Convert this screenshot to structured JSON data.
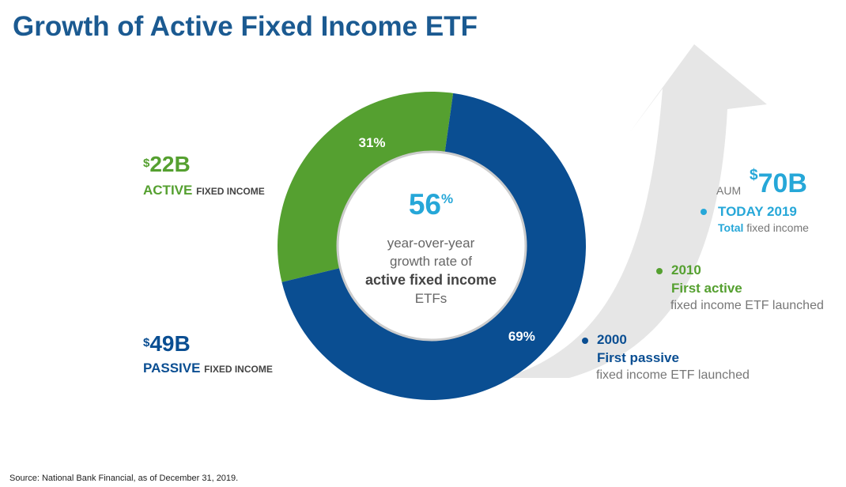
{
  "title": "Growth of Active Fixed Income ETF",
  "colors": {
    "title": "#1b5a91",
    "active": "#55a030",
    "passive": "#0a4e92",
    "accent": "#26a7d8",
    "arrow": "#e6e6e6"
  },
  "chart_data": {
    "type": "pie",
    "variant": "donut",
    "categories": [
      "Active fixed income",
      "Passive fixed income"
    ],
    "values": [
      31,
      69
    ],
    "value_unit": "%",
    "data_labels": [
      "31%",
      "69%"
    ]
  },
  "segments": {
    "active": {
      "currency": "$",
      "amount": "22B",
      "label_strong": "ACTIVE",
      "label_small": "FIXED INCOME"
    },
    "passive": {
      "currency": "$",
      "amount": "49B",
      "label_strong": "PASSIVE",
      "label_small": "FIXED INCOME"
    }
  },
  "center": {
    "value": "56",
    "unit": "%",
    "line1": "year-over-year",
    "line2": "growth rate of",
    "line3": "active fixed income",
    "line4": "ETFs"
  },
  "milestones": {
    "today": {
      "aum_label": "AUM",
      "currency": "$",
      "amount": "70B",
      "year_label": "TODAY 2019",
      "head": "Total",
      "sub": "fixed income"
    },
    "y2010": {
      "year": "2010",
      "head": "First active",
      "sub": "fixed income ETF launched"
    },
    "y2000": {
      "year": "2000",
      "head": "First passive",
      "sub": "fixed income ETF launched"
    }
  },
  "source": "Source: National Bank Financial, as of December 31, 2019."
}
